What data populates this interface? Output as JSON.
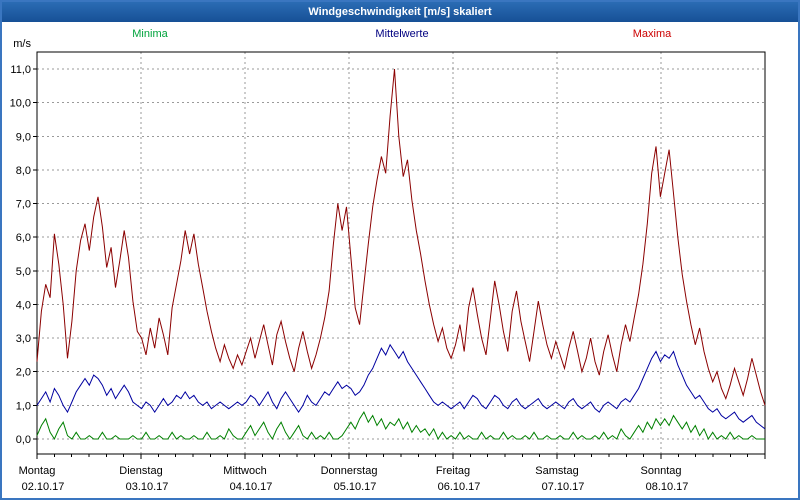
{
  "window": {
    "title": "Windgeschwindigkeit [m/s] skaliert"
  },
  "chart_data": {
    "type": "line",
    "title": "Windgeschwindigkeit [m/s] skaliert",
    "ylabel_unit": "m/s",
    "ylim": [
      0,
      11
    ],
    "ytick_step": 1,
    "grid": "dashed",
    "legend_position": "top",
    "points_per_day": 24,
    "days": [
      {
        "name": "Montag",
        "date": "02.10.17"
      },
      {
        "name": "Dienstag",
        "date": "03.10.17"
      },
      {
        "name": "Mittwoch",
        "date": "04.10.17"
      },
      {
        "name": "Donnerstag",
        "date": "05.10.17"
      },
      {
        "name": "Freitag",
        "date": "06.10.17"
      },
      {
        "name": "Samstag",
        "date": "07.10.17"
      },
      {
        "name": "Sonntag",
        "date": "08.10.17"
      }
    ],
    "series": [
      {
        "name": "Minima",
        "color": "#008000",
        "legend_color": "#00a33c",
        "values": [
          0.1,
          0.4,
          0.6,
          0.2,
          0.0,
          0.3,
          0.5,
          0.1,
          0.0,
          0.2,
          0.0,
          0.0,
          0.1,
          0.0,
          0.0,
          0.2,
          0.0,
          0.0,
          0.1,
          0.0,
          0.0,
          0.0,
          0.1,
          0.0,
          0.0,
          0.2,
          0.0,
          0.0,
          0.1,
          0.0,
          0.0,
          0.2,
          0.0,
          0.1,
          0.0,
          0.0,
          0.1,
          0.0,
          0.0,
          0.2,
          0.0,
          0.0,
          0.1,
          0.0,
          0.3,
          0.1,
          0.0,
          0.0,
          0.2,
          0.4,
          0.1,
          0.3,
          0.5,
          0.2,
          0.0,
          0.3,
          0.5,
          0.2,
          0.0,
          0.2,
          0.4,
          0.1,
          0.0,
          0.2,
          0.0,
          0.1,
          0.0,
          0.2,
          0.0,
          0.0,
          0.1,
          0.3,
          0.5,
          0.3,
          0.6,
          0.8,
          0.5,
          0.7,
          0.4,
          0.6,
          0.3,
          0.5,
          0.4,
          0.6,
          0.3,
          0.5,
          0.2,
          0.4,
          0.2,
          0.3,
          0.1,
          0.3,
          0.0,
          0.2,
          0.0,
          0.1,
          0.0,
          0.2,
          0.0,
          0.1,
          0.0,
          0.0,
          0.2,
          0.0,
          0.1,
          0.0,
          0.0,
          0.2,
          0.0,
          0.1,
          0.0,
          0.0,
          0.1,
          0.0,
          0.2,
          0.0,
          0.0,
          0.1,
          0.0,
          0.0,
          0.1,
          0.0,
          0.0,
          0.2,
          0.0,
          0.1,
          0.0,
          0.0,
          0.1,
          0.0,
          0.2,
          0.0,
          0.1,
          0.0,
          0.3,
          0.1,
          0.0,
          0.2,
          0.4,
          0.2,
          0.5,
          0.3,
          0.6,
          0.4,
          0.6,
          0.4,
          0.7,
          0.5,
          0.3,
          0.5,
          0.2,
          0.4,
          0.1,
          0.3,
          0.0,
          0.2,
          0.0,
          0.1,
          0.0,
          0.2,
          0.0,
          0.1,
          0.0,
          0.0,
          0.1,
          0.0,
          0.0,
          0.0
        ]
      },
      {
        "name": "Mittelwerte",
        "color": "#0000a0",
        "legend_color": "#000080",
        "values": [
          1.0,
          1.2,
          1.4,
          1.1,
          1.5,
          1.3,
          1.0,
          0.8,
          1.1,
          1.4,
          1.6,
          1.8,
          1.6,
          1.9,
          1.8,
          1.6,
          1.3,
          1.5,
          1.2,
          1.4,
          1.6,
          1.4,
          1.1,
          1.0,
          0.9,
          1.1,
          1.0,
          0.8,
          1.0,
          1.2,
          1.0,
          1.1,
          1.3,
          1.2,
          1.4,
          1.2,
          1.3,
          1.1,
          1.0,
          1.1,
          0.9,
          1.0,
          1.1,
          1.0,
          0.9,
          1.0,
          1.1,
          1.0,
          1.1,
          1.3,
          1.2,
          1.0,
          1.2,
          1.4,
          1.1,
          0.9,
          1.2,
          1.4,
          1.2,
          1.0,
          0.8,
          1.0,
          1.3,
          1.1,
          1.0,
          1.2,
          1.4,
          1.3,
          1.5,
          1.7,
          1.5,
          1.6,
          1.5,
          1.3,
          1.4,
          1.6,
          1.9,
          2.1,
          2.4,
          2.7,
          2.5,
          2.8,
          2.6,
          2.4,
          2.6,
          2.3,
          2.1,
          1.9,
          1.7,
          1.5,
          1.3,
          1.1,
          1.0,
          1.1,
          1.0,
          0.9,
          1.0,
          1.1,
          0.9,
          1.1,
          1.3,
          1.2,
          1.0,
          0.9,
          1.1,
          1.3,
          1.2,
          1.0,
          0.9,
          1.1,
          1.2,
          1.0,
          0.9,
          1.0,
          1.1,
          1.2,
          1.0,
          0.9,
          1.0,
          1.1,
          1.0,
          0.9,
          1.1,
          1.2,
          1.0,
          0.9,
          1.0,
          1.1,
          0.9,
          0.8,
          1.0,
          1.1,
          1.0,
          0.9,
          1.1,
          1.2,
          1.1,
          1.3,
          1.5,
          1.8,
          2.1,
          2.4,
          2.6,
          2.3,
          2.5,
          2.4,
          2.6,
          2.2,
          1.9,
          1.6,
          1.4,
          1.2,
          1.3,
          1.1,
          0.9,
          0.8,
          0.9,
          0.7,
          0.6,
          0.7,
          0.8,
          0.6,
          0.5,
          0.6,
          0.7,
          0.5,
          0.4,
          0.3
        ]
      },
      {
        "name": "Maxima",
        "color": "#8b0000",
        "legend_color": "#cc0000",
        "values": [
          2.3,
          3.8,
          4.6,
          4.2,
          6.1,
          5.2,
          4.0,
          2.4,
          3.5,
          5.0,
          5.9,
          6.4,
          5.6,
          6.6,
          7.2,
          6.3,
          5.1,
          5.7,
          4.5,
          5.3,
          6.2,
          5.4,
          4.1,
          3.2,
          3.0,
          2.5,
          3.3,
          2.7,
          3.6,
          3.1,
          2.5,
          3.9,
          4.6,
          5.3,
          6.2,
          5.5,
          6.1,
          5.2,
          4.5,
          3.8,
          3.2,
          2.7,
          2.3,
          2.8,
          2.4,
          2.1,
          2.5,
          2.2,
          2.6,
          3.0,
          2.4,
          2.9,
          3.4,
          2.8,
          2.2,
          3.1,
          3.5,
          2.9,
          2.4,
          2.0,
          2.7,
          3.2,
          2.6,
          2.1,
          2.5,
          3.0,
          3.6,
          4.4,
          5.8,
          7.0,
          6.2,
          6.9,
          5.4,
          3.9,
          3.4,
          4.6,
          5.8,
          6.9,
          7.7,
          8.4,
          7.9,
          9.6,
          11.0,
          9.0,
          7.8,
          8.3,
          7.1,
          6.2,
          5.5,
          4.7,
          4.0,
          3.4,
          2.9,
          3.3,
          2.7,
          2.4,
          2.8,
          3.4,
          2.6,
          3.9,
          4.5,
          3.7,
          3.0,
          2.5,
          3.6,
          4.7,
          4.0,
          3.2,
          2.6,
          3.8,
          4.4,
          3.5,
          2.9,
          2.3,
          3.2,
          4.1,
          3.4,
          2.8,
          2.4,
          2.9,
          2.5,
          2.1,
          2.7,
          3.2,
          2.6,
          2.0,
          2.4,
          3.0,
          2.3,
          1.9,
          2.6,
          3.1,
          2.5,
          2.0,
          2.8,
          3.4,
          2.9,
          3.6,
          4.3,
          5.2,
          6.4,
          7.9,
          8.7,
          7.2,
          7.9,
          8.6,
          7.3,
          6.0,
          4.9,
          4.1,
          3.4,
          2.8,
          3.3,
          2.6,
          2.1,
          1.7,
          2.0,
          1.5,
          1.2,
          1.6,
          2.1,
          1.7,
          1.3,
          1.8,
          2.4,
          1.9,
          1.4,
          1.0
        ]
      }
    ]
  }
}
